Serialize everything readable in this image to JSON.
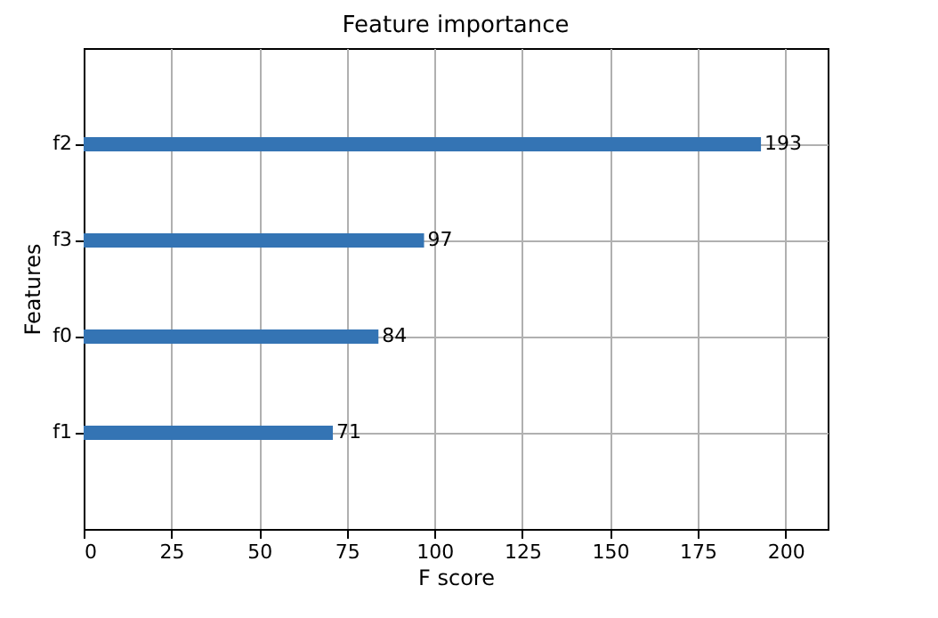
{
  "chart_data": {
    "type": "bar",
    "orientation": "horizontal",
    "title": "Feature importance",
    "xlabel": "F score",
    "ylabel": "Features",
    "categories": [
      "f2",
      "f3",
      "f0",
      "f1"
    ],
    "series": [
      {
        "color": "#3474b4",
        "values": [
          193,
          97,
          84,
          71
        ]
      }
    ],
    "xlim": [
      0,
      212
    ],
    "xticks": [
      0,
      25,
      50,
      75,
      100,
      125,
      150,
      175,
      200
    ],
    "grid": true,
    "data_labels": true
  }
}
